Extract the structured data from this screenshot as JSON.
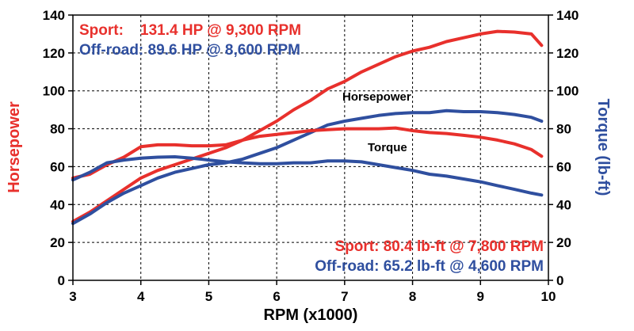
{
  "chart_data": {
    "type": "line",
    "xlabel": "RPM (x1000)",
    "ylabel_left": "Horsepower",
    "ylabel_right": "Torque (lb-ft)",
    "xlim": [
      3,
      10
    ],
    "ylim": [
      0,
      140
    ],
    "x_ticks": [
      "3",
      "4",
      "5",
      "6",
      "7",
      "8",
      "9",
      "10"
    ],
    "y_ticks": [
      "0",
      "20",
      "40",
      "60",
      "80",
      "100",
      "120",
      "140"
    ],
    "grid": "dashed",
    "colors": {
      "sport": "#e8302c",
      "offroad": "#2f4f9f"
    },
    "annotations": {
      "hp_sport": "Sport:    131.4 HP @ 9,300 RPM",
      "hp_offroad": "Off-road: 89.6 HP @ 8,600 RPM",
      "tq_sport": "Sport: 80.4 lb-ft @ 7,800 RPM",
      "tq_offroad": "Off-road: 65.2 lb-ft @ 4,600 RPM"
    },
    "curve_labels": {
      "horsepower": "Horsepower",
      "torque": "Torque"
    },
    "series": [
      {
        "id": "hp_sport",
        "color": "#e8302c",
        "x": [
          3.0,
          3.25,
          3.5,
          3.75,
          4.0,
          4.25,
          4.5,
          4.75,
          5.0,
          5.25,
          5.5,
          5.75,
          6.0,
          6.25,
          6.5,
          6.75,
          7.0,
          7.25,
          7.5,
          7.75,
          8.0,
          8.25,
          8.5,
          8.75,
          9.0,
          9.25,
          9.5,
          9.75,
          9.9
        ],
        "y": [
          31,
          36,
          42,
          48,
          54,
          58,
          61,
          64,
          67,
          70,
          74,
          79,
          84,
          90,
          95,
          101,
          105,
          110,
          114,
          118,
          121,
          123,
          126,
          128,
          130,
          131.4,
          131,
          130,
          124
        ]
      },
      {
        "id": "hp_offroad",
        "color": "#2f4f9f",
        "x": [
          3.0,
          3.25,
          3.5,
          3.75,
          4.0,
          4.25,
          4.5,
          4.75,
          5.0,
          5.25,
          5.5,
          5.75,
          6.0,
          6.25,
          6.5,
          6.75,
          7.0,
          7.25,
          7.5,
          7.75,
          8.0,
          8.25,
          8.5,
          8.75,
          9.0,
          9.25,
          9.5,
          9.75,
          9.9
        ],
        "y": [
          30,
          35,
          41,
          46,
          50,
          54,
          57,
          59,
          61,
          62,
          64,
          67,
          70,
          74,
          78,
          82,
          84,
          85.5,
          87,
          88,
          88.5,
          88.5,
          89.5,
          89,
          89,
          88.5,
          87.5,
          86,
          84
        ]
      },
      {
        "id": "tq_sport",
        "color": "#e8302c",
        "x": [
          3.0,
          3.25,
          3.5,
          3.75,
          4.0,
          4.25,
          4.5,
          4.75,
          5.0,
          5.25,
          5.5,
          5.75,
          6.0,
          6.25,
          6.5,
          6.75,
          7.0,
          7.25,
          7.5,
          7.75,
          8.0,
          8.25,
          8.5,
          8.75,
          9.0,
          9.25,
          9.5,
          9.75,
          9.9
        ],
        "y": [
          54,
          56,
          61,
          65,
          70.5,
          71.5,
          71.5,
          71,
          71,
          71.5,
          74,
          76,
          77,
          78,
          79,
          79.5,
          80,
          80,
          80,
          80.4,
          79,
          78,
          77.5,
          76.5,
          75.5,
          74,
          72,
          69,
          65.5
        ]
      },
      {
        "id": "tq_offroad",
        "color": "#2f4f9f",
        "x": [
          3.0,
          3.25,
          3.5,
          3.75,
          4.0,
          4.25,
          4.5,
          4.75,
          5.0,
          5.25,
          5.5,
          5.75,
          6.0,
          6.25,
          6.5,
          6.75,
          7.0,
          7.25,
          7.5,
          7.75,
          8.0,
          8.25,
          8.5,
          8.75,
          9.0,
          9.25,
          9.5,
          9.75,
          9.9
        ],
        "y": [
          53,
          57,
          62,
          63.5,
          64.5,
          65,
          65.2,
          64.5,
          63.5,
          62.5,
          62,
          61.5,
          61.5,
          62,
          62,
          63,
          63,
          62.5,
          61,
          59.5,
          58,
          56,
          55,
          53.5,
          52,
          50,
          48,
          46,
          45
        ]
      }
    ]
  }
}
